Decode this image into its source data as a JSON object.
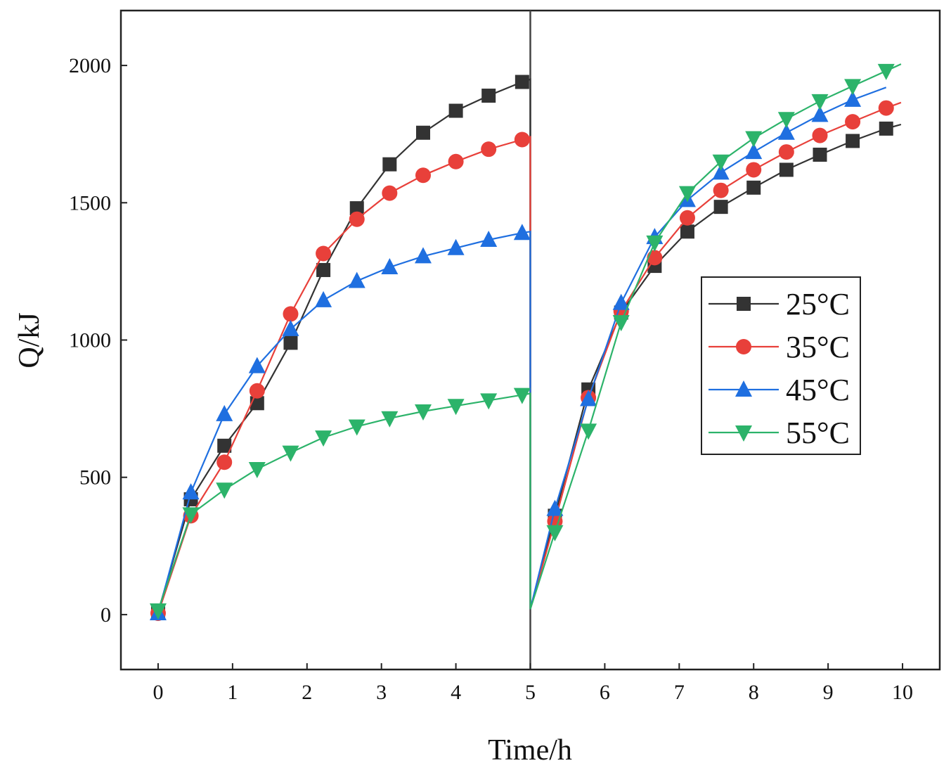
{
  "chart_data": {
    "type": "line",
    "title": "",
    "xlabel": "Time/h",
    "ylabel": "Q/kJ",
    "xlim": [
      -0.5,
      10.5
    ],
    "ylim": [
      -200,
      2200
    ],
    "xticks": [
      "0",
      "1",
      "2",
      "3",
      "4",
      "5",
      "6",
      "7",
      "8",
      "9",
      "10"
    ],
    "yticks": [
      "0",
      "500",
      "1000",
      "1500",
      "2000"
    ],
    "divider_x": 5,
    "legend_position": "right-middle",
    "series": [
      {
        "name": "25°C",
        "color": "#333333",
        "marker": "square",
        "x": [
          0,
          0.44,
          0.89,
          1.33,
          1.78,
          2.22,
          2.67,
          3.11,
          3.56,
          4.0,
          4.44,
          4.89,
          5.0,
          5.0,
          5.33,
          5.78,
          6.22,
          6.67,
          7.11,
          7.56,
          8.0,
          8.44,
          8.89,
          9.33,
          9.78,
          9.98
        ],
        "y": [
          10,
          420,
          615,
          770,
          990,
          1255,
          1480,
          1640,
          1755,
          1835,
          1890,
          1940,
          1950,
          20,
          360,
          820,
          1100,
          1270,
          1395,
          1485,
          1555,
          1620,
          1675,
          1725,
          1770,
          1785
        ],
        "marked": [
          true,
          true,
          true,
          true,
          true,
          true,
          true,
          true,
          true,
          true,
          true,
          true,
          false,
          false,
          true,
          true,
          true,
          true,
          true,
          true,
          true,
          true,
          true,
          true,
          true,
          false
        ]
      },
      {
        "name": "35°C",
        "color": "#e8403a",
        "marker": "circle",
        "x": [
          0,
          0.44,
          0.89,
          1.33,
          1.78,
          2.22,
          2.67,
          3.11,
          3.56,
          4.0,
          4.44,
          4.89,
          5.0,
          5.0,
          5.33,
          5.78,
          6.22,
          6.67,
          7.11,
          7.56,
          8.0,
          8.44,
          8.89,
          9.33,
          9.78,
          9.98
        ],
        "y": [
          5,
          360,
          555,
          815,
          1095,
          1315,
          1440,
          1535,
          1600,
          1650,
          1695,
          1730,
          1740,
          20,
          340,
          790,
          1105,
          1300,
          1445,
          1545,
          1620,
          1685,
          1745,
          1795,
          1845,
          1865
        ],
        "marked": [
          true,
          true,
          true,
          true,
          true,
          true,
          true,
          true,
          true,
          true,
          true,
          true,
          false,
          false,
          true,
          true,
          true,
          true,
          true,
          true,
          true,
          true,
          true,
          true,
          true,
          false
        ]
      },
      {
        "name": "45°C",
        "color": "#1f6fe0",
        "marker": "triangle-up",
        "x": [
          0,
          0.44,
          0.89,
          1.33,
          1.78,
          2.22,
          2.67,
          3.11,
          3.56,
          4.0,
          4.44,
          4.89,
          5.0,
          5.0,
          5.33,
          5.78,
          6.22,
          6.67,
          7.11,
          7.56,
          8.0,
          8.44,
          8.89,
          9.33,
          9.78
        ],
        "y": [
          5,
          445,
          730,
          905,
          1040,
          1145,
          1215,
          1265,
          1305,
          1335,
          1365,
          1390,
          1395,
          20,
          385,
          785,
          1135,
          1375,
          1510,
          1610,
          1685,
          1755,
          1820,
          1875,
          1920
        ],
        "marked": [
          true,
          true,
          true,
          true,
          true,
          true,
          true,
          true,
          true,
          true,
          true,
          true,
          false,
          false,
          true,
          true,
          true,
          true,
          true,
          true,
          true,
          true,
          true,
          true,
          false
        ]
      },
      {
        "name": "55°C",
        "color": "#2cb36a",
        "marker": "triangle-down",
        "x": [
          0,
          0.44,
          0.89,
          1.33,
          1.78,
          2.22,
          2.67,
          3.11,
          3.56,
          4.0,
          4.44,
          4.89,
          5.0,
          5.0,
          5.33,
          5.78,
          6.22,
          6.67,
          7.11,
          7.56,
          8.0,
          8.44,
          8.89,
          9.33,
          9.78,
          9.98
        ],
        "y": [
          15,
          365,
          455,
          530,
          590,
          645,
          685,
          715,
          740,
          760,
          780,
          800,
          805,
          20,
          300,
          670,
          1065,
          1355,
          1535,
          1650,
          1735,
          1805,
          1870,
          1925,
          1980,
          2005
        ],
        "marked": [
          true,
          true,
          true,
          true,
          true,
          true,
          true,
          true,
          true,
          true,
          true,
          true,
          false,
          false,
          true,
          true,
          true,
          true,
          true,
          true,
          true,
          true,
          true,
          true,
          true,
          false
        ]
      }
    ]
  }
}
